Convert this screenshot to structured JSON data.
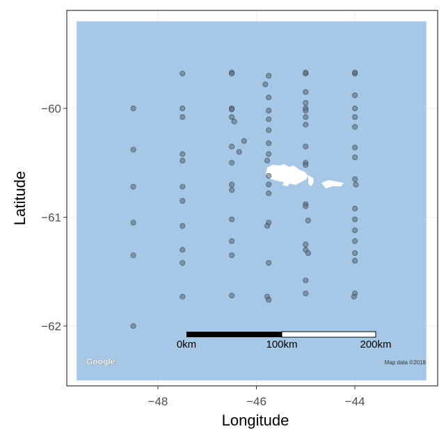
{
  "chart_data": {
    "type": "scatter",
    "xlabel": "Longitude",
    "ylabel": "Latitude",
    "xlim": [
      -49.85,
      -42.32
    ],
    "ylim": [
      -62.55,
      -59.1
    ],
    "x_ticks": [
      -48,
      -46,
      -44
    ],
    "x_tick_labels": [
      "−48",
      "−46",
      "−44"
    ],
    "y_ticks": [
      -60,
      -61,
      -62
    ],
    "y_tick_labels": [
      "−60",
      "−61",
      "−62"
    ],
    "grid": true,
    "map_extent": {
      "lon": [
        -49.65,
        -42.55
      ],
      "lat": [
        -62.5,
        -59.2
      ]
    },
    "colors": {
      "sea": "#a6c8e6",
      "land": "#ffffff",
      "point": "#5f6f80",
      "panel_border": "#333333",
      "grid": "#ebebeb"
    },
    "series": [
      {
        "points": [
          [
            -48.5,
            -60.0
          ],
          [
            -48.5,
            -60.38
          ],
          [
            -48.5,
            -60.72
          ],
          [
            -48.5,
            -61.05
          ],
          [
            -48.5,
            -61.35
          ],
          [
            -48.5,
            -62.0
          ],
          [
            -47.5,
            -59.68
          ],
          [
            -47.5,
            -60.0
          ],
          [
            -47.5,
            -60.08
          ],
          [
            -47.5,
            -60.42
          ],
          [
            -47.5,
            -60.48
          ],
          [
            -47.5,
            -60.72
          ],
          [
            -47.5,
            -60.85
          ],
          [
            -47.5,
            -61.08
          ],
          [
            -47.5,
            -61.3
          ],
          [
            -47.5,
            -61.42
          ],
          [
            -47.5,
            -61.73
          ],
          [
            -46.5,
            -59.67
          ],
          [
            -46.5,
            -59.68
          ],
          [
            -46.5,
            -60.0
          ],
          [
            -46.5,
            -60.01
          ],
          [
            -46.5,
            -60.08
          ],
          [
            -46.45,
            -60.12
          ],
          [
            -46.5,
            -60.35
          ],
          [
            -46.5,
            -60.5
          ],
          [
            -46.5,
            -60.7
          ],
          [
            -46.5,
            -60.75
          ],
          [
            -46.5,
            -61.02
          ],
          [
            -46.5,
            -61.22
          ],
          [
            -46.5,
            -61.35
          ],
          [
            -46.5,
            -61.72
          ],
          [
            -46.35,
            -60.4
          ],
          [
            -46.25,
            -60.3
          ],
          [
            -45.82,
            -59.78
          ],
          [
            -45.75,
            -59.7
          ],
          [
            -45.75,
            -59.9
          ],
          [
            -45.75,
            -60.02
          ],
          [
            -45.75,
            -60.1
          ],
          [
            -45.75,
            -60.2
          ],
          [
            -45.75,
            -60.32
          ],
          [
            -45.78,
            -60.48
          ],
          [
            -45.75,
            -60.42
          ],
          [
            -45.75,
            -60.62
          ],
          [
            -45.75,
            -60.7
          ],
          [
            -45.75,
            -60.78
          ],
          [
            -45.75,
            -61.05
          ],
          [
            -45.78,
            -61.08
          ],
          [
            -45.75,
            -61.42
          ],
          [
            -45.78,
            -61.73
          ],
          [
            -45.75,
            -61.76
          ],
          [
            -45.0,
            -59.68
          ],
          [
            -45.0,
            -59.67
          ],
          [
            -45.0,
            -59.85
          ],
          [
            -45.0,
            -59.95
          ],
          [
            -45.0,
            -60.0
          ],
          [
            -45.0,
            -60.02
          ],
          [
            -45.0,
            -60.08
          ],
          [
            -45.0,
            -60.15
          ],
          [
            -45.0,
            -60.35
          ],
          [
            -45.0,
            -60.5
          ],
          [
            -45.0,
            -60.52
          ],
          [
            -45.0,
            -60.88
          ],
          [
            -45.0,
            -60.9
          ],
          [
            -44.95,
            -61.03
          ],
          [
            -45.0,
            -61.25
          ],
          [
            -45.0,
            -61.3
          ],
          [
            -44.95,
            -61.33
          ],
          [
            -45.0,
            -61.58
          ],
          [
            -45.0,
            -61.7
          ],
          [
            -44.0,
            -59.68
          ],
          [
            -44.0,
            -59.67
          ],
          [
            -44.0,
            -59.88
          ],
          [
            -44.0,
            -60.0
          ],
          [
            -44.0,
            -60.08
          ],
          [
            -44.0,
            -60.17
          ],
          [
            -44.0,
            -60.36
          ],
          [
            -44.0,
            -60.45
          ],
          [
            -44.0,
            -60.65
          ],
          [
            -43.98,
            -60.7
          ],
          [
            -44.0,
            -60.92
          ],
          [
            -44.0,
            -61.02
          ],
          [
            -44.0,
            -61.12
          ],
          [
            -44.0,
            -61.22
          ],
          [
            -44.0,
            -61.33
          ],
          [
            -44.0,
            -61.4
          ],
          [
            -44.0,
            -61.7
          ],
          [
            -44.02,
            -61.73
          ]
        ]
      }
    ],
    "annotations": {
      "scale_bar": {
        "labels": [
          "0km",
          "100km",
          "200km"
        ]
      },
      "logo": "Google",
      "attribution": "Map data ©2018"
    }
  }
}
